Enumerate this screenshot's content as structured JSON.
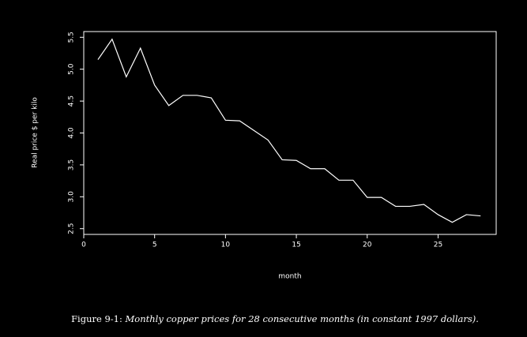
{
  "chart_data": {
    "type": "line",
    "title": "Monthly copper prices for 28 consecutive months (in constant 1997 dollars).",
    "figure_label": "Figure 9-1:",
    "x_label": "month",
    "y_label": "Real price $ per kilo",
    "x": [
      1,
      2,
      3,
      4,
      5,
      6,
      7,
      8,
      9,
      10,
      11,
      12,
      13,
      14,
      15,
      16,
      17,
      18,
      19,
      20,
      21,
      22,
      23,
      24,
      25,
      26,
      27,
      28
    ],
    "series": [
      {
        "color": "#ffffff",
        "values": [
          5.15,
          5.47,
          4.88,
          5.33,
          4.75,
          4.43,
          4.59,
          4.59,
          4.55,
          4.2,
          4.19,
          4.04,
          3.89,
          3.58,
          3.57,
          3.44,
          3.44,
          3.26,
          3.26,
          2.99,
          2.99,
          2.85,
          2.85,
          2.88,
          2.72,
          2.6,
          2.72,
          2.7
        ]
      }
    ],
    "xlim": [
      0,
      29.1
    ],
    "ylim": [
      2.41,
      5.59
    ],
    "xticks": [
      0,
      5,
      10,
      15,
      20,
      25
    ],
    "yticks": [
      2.5,
      {
        "value": 3,
        "label": "3.0"
      },
      3.5,
      {
        "value": 4,
        "label": "4.0"
      },
      4.5,
      {
        "value": 5,
        "label": "5.0"
      },
      5.5
    ]
  }
}
